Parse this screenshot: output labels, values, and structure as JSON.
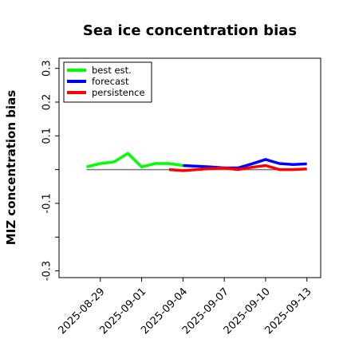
{
  "chart_data": {
    "type": "line",
    "title": "Sea ice concentration bias",
    "xlabel": "",
    "ylabel": "MIZ concentration bias",
    "ylim": [
      -0.32,
      0.33
    ],
    "y_ticks": [
      -0.3,
      -0.2,
      -0.1,
      0.0,
      0.1,
      0.2,
      0.3
    ],
    "y_tick_labels": [
      "-0.3",
      "",
      "-0.1",
      "",
      "0.1",
      "0.2",
      "0.3"
    ],
    "xlim": [
      "2025-08-26",
      "2025-09-14"
    ],
    "x_ticks": [
      "2025-08-29",
      "2025-09-01",
      "2025-09-04",
      "2025-09-07",
      "2025-09-10",
      "2025-09-13"
    ],
    "highlighted_x_tick": "2025-09-04",
    "highlight_color": "#228B22",
    "reference_line_y": 0.0,
    "legend_position": "top-left",
    "series": [
      {
        "name": "best est.",
        "color": "#00ff00",
        "x": [
          "2025-08-28",
          "2025-08-29",
          "2025-08-30",
          "2025-08-31",
          "2025-09-01",
          "2025-09-02",
          "2025-09-03",
          "2025-09-04"
        ],
        "values": [
          0.008,
          0.018,
          0.023,
          0.048,
          0.008,
          0.018,
          0.018,
          0.012
        ]
      },
      {
        "name": "forecast",
        "color": "#0000ff",
        "x": [
          "2025-09-04",
          "2025-09-05",
          "2025-09-06",
          "2025-09-07",
          "2025-09-08",
          "2025-09-09",
          "2025-09-10",
          "2025-09-11",
          "2025-09-12",
          "2025-09-13"
        ],
        "values": [
          0.012,
          0.01,
          0.008,
          0.005,
          0.005,
          0.017,
          0.03,
          0.018,
          0.015,
          0.017
        ]
      },
      {
        "name": "persistence",
        "color": "#ff0000",
        "x": [
          "2025-09-03",
          "2025-09-04",
          "2025-09-05",
          "2025-09-06",
          "2025-09-07",
          "2025-09-08",
          "2025-09-09",
          "2025-09-10",
          "2025-09-11",
          "2025-09-12",
          "2025-09-13"
        ],
        "values": [
          0.0,
          -0.003,
          0.0,
          0.003,
          0.005,
          0.0,
          0.007,
          0.012,
          0.0,
          0.0,
          0.002
        ]
      }
    ]
  }
}
